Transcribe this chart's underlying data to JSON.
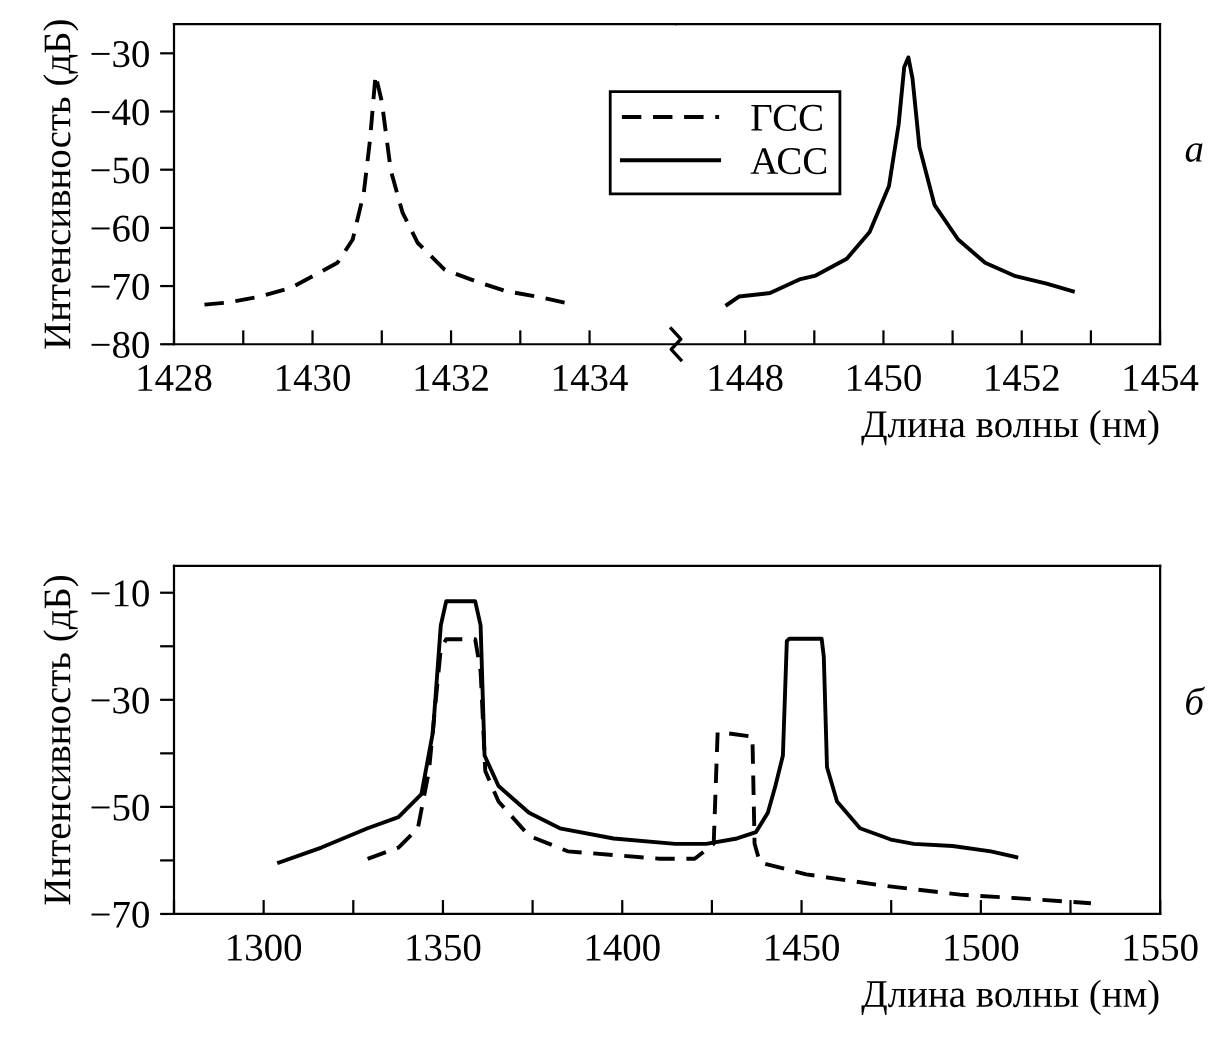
{
  "chart_data": [
    {
      "type": "line",
      "ylabel": "Интенсивность (дБ)",
      "xlim": [
        1428,
        1435.25
      ],
      "ylim": [
        -80,
        -25
      ],
      "xticks": [
        1428,
        {
          "value": 1429,
          "label": null
        },
        1430,
        {
          "value": 1431,
          "label": null
        },
        1432,
        {
          "value": 1433,
          "label": null
        },
        1434
      ],
      "yticks": [
        -80,
        -70,
        -60,
        -50,
        -40,
        -30
      ],
      "legend": "top",
      "grid": false,
      "series": [
        {
          "name": "ГСС",
          "color": "#000000",
          "line_style": "dashed",
          "x": [
            1428.44,
            1428.8,
            1429.24,
            1429.69,
            1430.02,
            1430.36,
            1430.58,
            1430.74,
            1430.83,
            1430.91,
            1431.0,
            1431.13,
            1431.3,
            1431.52,
            1431.91,
            1432.36,
            1432.8,
            1433.24,
            1433.66
          ],
          "values": [
            -73.2,
            -72.8,
            -71.8,
            -70.3,
            -68.2,
            -66,
            -62,
            -54,
            -44.9,
            -33.7,
            -38.3,
            -50.1,
            -57.4,
            -62.6,
            -67.2,
            -69.2,
            -70.9,
            -71.8,
            -72.9
          ]
        }
      ]
    },
    {
      "type": "line",
      "xlabel": "Длина волны (нм)",
      "xlim": [
        1447,
        1454
      ],
      "ylim": [
        -80,
        -25
      ],
      "xticks": [
        1448,
        {
          "value": 1449,
          "label": null
        },
        1450,
        {
          "value": 1451,
          "label": null
        },
        1452,
        {
          "value": 1453,
          "label": null
        },
        1454
      ],
      "yticks": [
        -80,
        -70,
        -60,
        -50,
        -40,
        -30
      ],
      "tick_labels": "x",
      "grid": false,
      "annotations": [
        "а"
      ],
      "series": [
        {
          "name": "АСС",
          "color": "#000000",
          "line_style": "solid",
          "x": [
            1447.74,
            1447.91,
            1448.36,
            1448.8,
            1449.02,
            1449.47,
            1449.8,
            1450.08,
            1450.22,
            1450.3,
            1450.36,
            1450.42,
            1450.52,
            1450.74,
            1451.08,
            1451.47,
            1451.91,
            1452.36,
            1452.74
          ],
          "values": [
            -73.2,
            -71.8,
            -71.2,
            -68.8,
            -68.2,
            -65.3,
            -60.7,
            -52.8,
            -42.2,
            -32.4,
            -30.7,
            -34.3,
            -46.1,
            -56.1,
            -62,
            -66,
            -68.3,
            -69.6,
            -70.9
          ]
        }
      ]
    },
    {
      "type": "line",
      "xlabel": "Длина волны (нм)",
      "ylabel": "Интенсивность (дБ)",
      "xlim": [
        1275,
        1550
      ],
      "ylim": [
        -70,
        -5
      ],
      "xticks": [
        {
          "value": 1275,
          "label": null
        },
        1300,
        {
          "value": 1325,
          "label": null
        },
        1350,
        {
          "value": 1375,
          "label": null
        },
        1400,
        {
          "value": 1425,
          "label": null
        },
        1450,
        {
          "value": 1475,
          "label": null
        },
        1500,
        {
          "value": 1525,
          "label": null
        },
        1550
      ],
      "yticks": [
        -70,
        {
          "value": -60,
          "label": null
        },
        -50,
        {
          "value": -40,
          "label": null
        },
        -30,
        {
          "value": -20,
          "label": null
        },
        -10
      ],
      "grid": false,
      "annotations": [
        "б"
      ],
      "series": [
        {
          "color": "#000000",
          "line_style": "solid",
          "x": [
            1304.3,
            1316.1,
            1329,
            1337.6,
            1344,
            1347.2,
            1349.4,
            1350.9,
            1359,
            1360.5,
            1361.6,
            1365.5,
            1374,
            1382.6,
            1397.6,
            1414.8,
            1423.4,
            1432,
            1437.3,
            1440.6,
            1442.7,
            1444.8,
            1445.9,
            1446.6,
            1455.6,
            1456.2,
            1457.1,
            1459.9,
            1466.3,
            1474.9,
            1481.3,
            1492.1,
            1502.8,
            1509.9
          ],
          "values": [
            -60.4,
            -57.6,
            -54,
            -51.9,
            -47.6,
            -36.1,
            -16.1,
            -11.6,
            -11.6,
            -16.1,
            -40.4,
            -46.1,
            -51.1,
            -54,
            -55.9,
            -56.9,
            -56.9,
            -55.9,
            -54.7,
            -51.1,
            -46.1,
            -40.4,
            -19,
            -18.6,
            -18.6,
            -21.9,
            -42.6,
            -49,
            -54,
            -56.1,
            -56.9,
            -57.3,
            -58.3,
            -59.4
          ]
        },
        {
          "color": "#000000",
          "line_style": "dashed",
          "x": [
            1329,
            1337.6,
            1343,
            1346.1,
            1349.4,
            1350.9,
            1359,
            1360.5,
            1361.8,
            1365.5,
            1374,
            1384.8,
            1397.6,
            1410.5,
            1420.2,
            1425.5,
            1426.6,
            1427.7,
            1436.3,
            1436.9,
            1438.4,
            1451.3,
            1472.7,
            1494.2,
            1515.7,
            1530.7
          ],
          "values": [
            -59.7,
            -57.6,
            -54,
            -43.3,
            -20.4,
            -18.7,
            -18.7,
            -24.7,
            -43.3,
            -49,
            -55.4,
            -58.3,
            -59,
            -59.7,
            -59.7,
            -56.9,
            -36.1,
            -36.1,
            -36.9,
            -56.9,
            -60.4,
            -62.6,
            -64.7,
            -66.4,
            -67.3,
            -68
          ]
        }
      ]
    }
  ]
}
